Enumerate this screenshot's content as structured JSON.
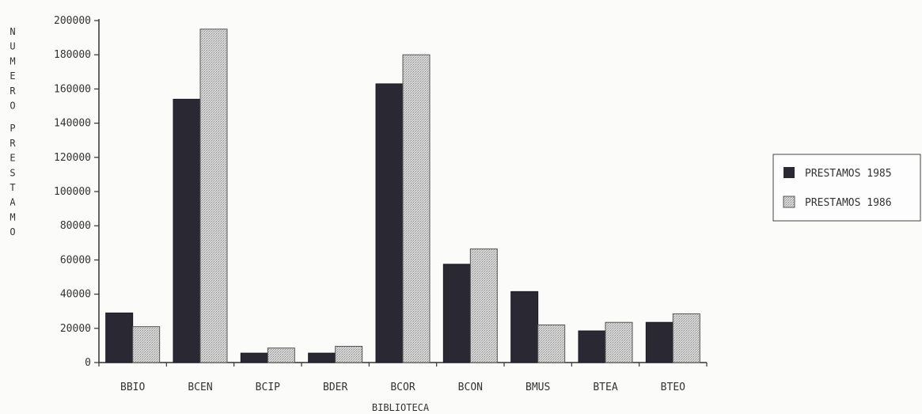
{
  "chart_data": {
    "type": "bar",
    "title": "",
    "xlabel": "BIBLIOTECA",
    "ylabel": "NUMERO PRESTAMO",
    "ylim": [
      0,
      200000
    ],
    "yticks": [
      "0",
      "20000",
      "40000",
      "60000",
      "80000",
      "100000",
      "120000",
      "140000",
      "160000",
      "180000",
      "200000"
    ],
    "categories": [
      "BBIO",
      "BCEN",
      "BCIP",
      "BDER",
      "BCOR",
      "BCON",
      "BMUS",
      "BTEA",
      "BTEO"
    ],
    "series": [
      {
        "name": "PRESTAMOS 1985",
        "color": "#2a2833",
        "values": [
          29000,
          154000,
          5500,
          5500,
          163000,
          57500,
          41500,
          18500,
          23500
        ]
      },
      {
        "name": "PRESTAMOS 1986",
        "color": "#c9c9c9",
        "values": [
          21000,
          195000,
          8500,
          9500,
          180000,
          66500,
          22000,
          23500,
          28500
        ]
      }
    ],
    "legend_position": "right",
    "grid": false
  }
}
